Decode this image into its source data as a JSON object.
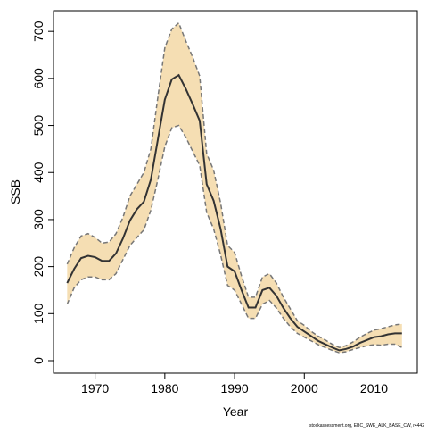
{
  "chart_data": {
    "type": "line",
    "x_label": "Year",
    "y_label": "SSB",
    "footnote": "stockassessment.org, EBC_SWE_ALK_BASE_CW, r4442",
    "x": [
      1966,
      1967,
      1968,
      1969,
      1970,
      1971,
      1972,
      1973,
      1974,
      1975,
      1976,
      1977,
      1978,
      1979,
      1980,
      1981,
      1982,
      1983,
      1984,
      1985,
      1986,
      1987,
      1988,
      1989,
      1990,
      1991,
      1992,
      1993,
      1994,
      1995,
      1996,
      1997,
      1998,
      1999,
      2000,
      2001,
      2002,
      2003,
      2004,
      2005,
      2006,
      2007,
      2008,
      2009,
      2010,
      2011,
      2012,
      2013,
      2014
    ],
    "series": [
      {
        "color": "#333333",
        "values": [
          165,
          195,
          218,
          223,
          220,
          212,
          212,
          228,
          260,
          298,
          322,
          338,
          385,
          470,
          555,
          598,
          607,
          578,
          545,
          510,
          375,
          340,
          280,
          200,
          190,
          150,
          113,
          113,
          150,
          155,
          138,
          112,
          90,
          72,
          62,
          52,
          42,
          35,
          28,
          22,
          25,
          30,
          38,
          44,
          50,
          52,
          56,
          58,
          58
        ]
      }
    ],
    "band": {
      "color": "#f5deb3",
      "edge_color": "#777777",
      "upper": [
        205,
        240,
        265,
        270,
        262,
        250,
        252,
        270,
        305,
        350,
        375,
        400,
        450,
        560,
        665,
        705,
        718,
        680,
        645,
        605,
        440,
        405,
        335,
        245,
        230,
        180,
        135,
        135,
        178,
        185,
        165,
        135,
        110,
        85,
        75,
        62,
        52,
        44,
        35,
        28,
        32,
        40,
        50,
        58,
        65,
        68,
        72,
        76,
        78
      ],
      "lower": [
        120,
        155,
        172,
        178,
        178,
        172,
        172,
        185,
        215,
        245,
        262,
        278,
        320,
        385,
        455,
        495,
        500,
        475,
        445,
        415,
        315,
        280,
        225,
        160,
        150,
        120,
        90,
        90,
        120,
        128,
        112,
        90,
        72,
        58,
        50,
        42,
        34,
        28,
        22,
        17,
        19,
        24,
        28,
        32,
        34,
        33,
        35,
        35,
        28
      ]
    },
    "xlim": [
      1964.04,
      2016.2
    ],
    "ylim": [
      -26.6,
      744
    ],
    "xticks": [
      1970,
      1980,
      1990,
      2000,
      2010
    ],
    "yticks": [
      0,
      100,
      200,
      300,
      400,
      500,
      600,
      700
    ]
  }
}
